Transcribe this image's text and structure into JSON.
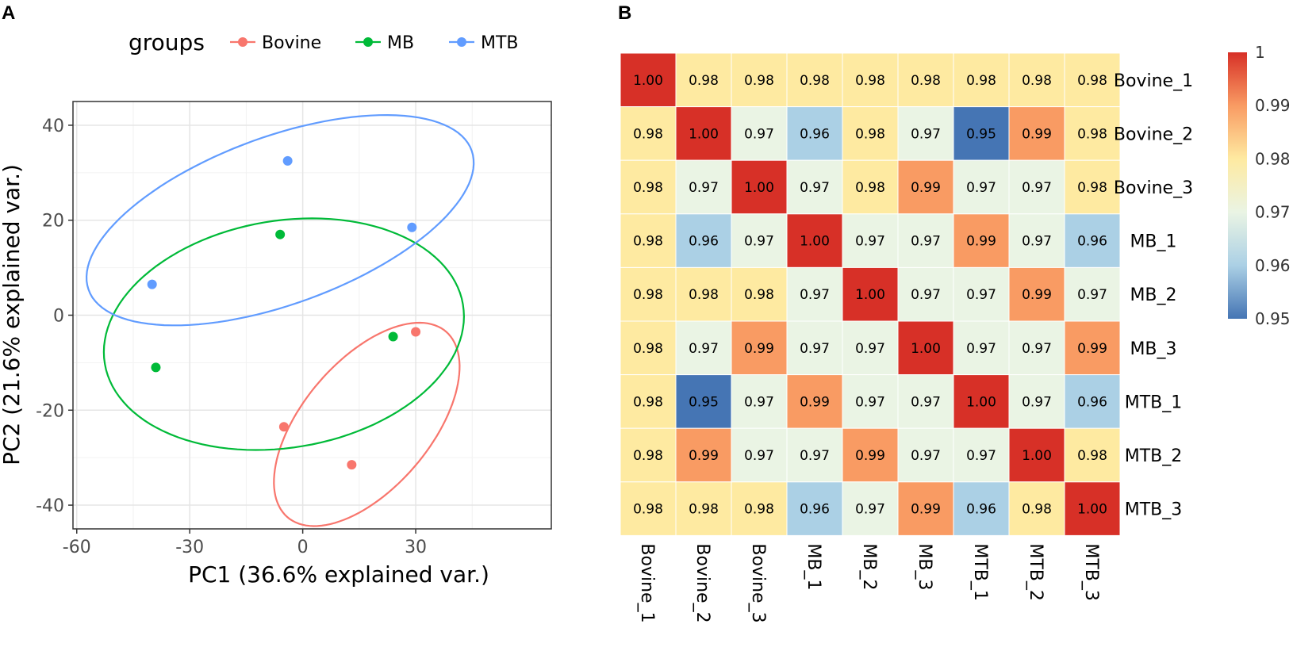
{
  "panels": {
    "a_label": "A",
    "b_label": "B"
  },
  "chart_data": [
    {
      "type": "scatter",
      "xlabel": "PC1 (36.6% explained var.)",
      "ylabel": "PC2 (21.6% explained var.)",
      "xlim": [
        -61,
        66
      ],
      "ylim": [
        -45,
        45
      ],
      "xticks": [
        -60,
        -30,
        0,
        30
      ],
      "yticks": [
        -40,
        -20,
        0,
        20,
        40
      ],
      "grid": true,
      "legend": {
        "title": "groups",
        "position": "top"
      },
      "series": [
        {
          "name": "Bovine",
          "color": "#F8766D",
          "points": [
            [
              30,
              -3.5
            ],
            [
              -5,
              -23.5
            ],
            [
              13,
              -31.5
            ]
          ],
          "ellipse": {
            "center": [
              17,
              -23
            ],
            "semi_axes": [
              29,
              15
            ],
            "angle_deg": 38
          }
        },
        {
          "name": "MB",
          "color": "#00BA38",
          "points": [
            [
              -6,
              17
            ],
            [
              24,
              -4.5
            ],
            [
              -39,
              -11
            ]
          ],
          "ellipse": {
            "center": [
              -5,
              -4
            ],
            "semi_axes": [
              48,
              24
            ],
            "angle_deg": 6
          }
        },
        {
          "name": "MTB",
          "color": "#619CFF",
          "points": [
            [
              -4,
              32.5
            ],
            [
              29,
              18.5
            ],
            [
              -40,
              6.5
            ]
          ],
          "ellipse": {
            "center": [
              -6,
              20
            ],
            "semi_axes": [
              53,
              18
            ],
            "angle_deg": 15
          }
        }
      ]
    },
    {
      "type": "heatmap",
      "title": "",
      "rows": [
        "Bovine_1",
        "Bovine_2",
        "Bovine_3",
        "MB_1",
        "MB_2",
        "MB_3",
        "MTB_1",
        "MTB_2",
        "MTB_3"
      ],
      "cols": [
        "Bovine_1",
        "Bovine_2",
        "Bovine_3",
        "MB_1",
        "MB_2",
        "MB_3",
        "MTB_1",
        "MTB_2",
        "MTB_3"
      ],
      "values": [
        [
          1.0,
          0.98,
          0.98,
          0.98,
          0.98,
          0.98,
          0.98,
          0.98,
          0.98
        ],
        [
          0.98,
          1.0,
          0.97,
          0.96,
          0.98,
          0.97,
          0.95,
          0.99,
          0.98
        ],
        [
          0.98,
          0.97,
          1.0,
          0.97,
          0.98,
          0.99,
          0.97,
          0.97,
          0.98
        ],
        [
          0.98,
          0.96,
          0.97,
          1.0,
          0.97,
          0.97,
          0.99,
          0.97,
          0.96
        ],
        [
          0.98,
          0.98,
          0.98,
          0.97,
          1.0,
          0.97,
          0.97,
          0.99,
          0.97
        ],
        [
          0.98,
          0.97,
          0.99,
          0.97,
          0.97,
          1.0,
          0.97,
          0.97,
          0.99
        ],
        [
          0.98,
          0.95,
          0.97,
          0.99,
          0.97,
          0.97,
          1.0,
          0.97,
          0.96
        ],
        [
          0.98,
          0.99,
          0.97,
          0.97,
          0.99,
          0.97,
          0.97,
          1.0,
          0.98
        ],
        [
          0.98,
          0.98,
          0.98,
          0.96,
          0.97,
          0.99,
          0.96,
          0.98,
          1.0
        ]
      ],
      "color_scale": {
        "range": [
          0.95,
          1
        ],
        "stops": [
          [
            0.95,
            "#4575B4"
          ],
          [
            0.96,
            "#ABD0E5"
          ],
          [
            0.97,
            "#EAF4E4"
          ],
          [
            0.98,
            "#FEEAA1"
          ],
          [
            0.99,
            "#F99B63"
          ],
          [
            1.0,
            "#D73027"
          ]
        ],
        "tick_labels": [
          "1",
          "0.99",
          "0.98",
          "0.97",
          "0.96",
          "0.95"
        ],
        "tick_values": [
          1,
          0.99,
          0.98,
          0.97,
          0.96,
          0.95
        ]
      }
    }
  ]
}
